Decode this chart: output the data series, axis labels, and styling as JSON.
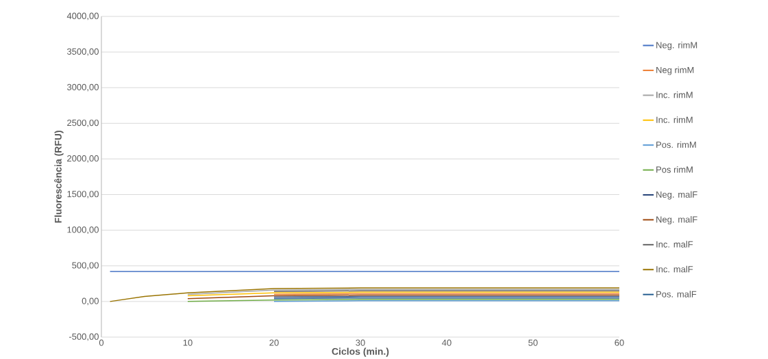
{
  "chart_data": {
    "type": "line",
    "xlabel": "Ciclos (min.)",
    "ylabel": "Fluorescência (RFU)",
    "x": [
      1,
      5,
      10,
      20,
      30,
      40,
      50,
      60
    ],
    "xlim": [
      0,
      60
    ],
    "xticks": [
      0,
      10,
      20,
      30,
      40,
      50,
      60
    ],
    "ylim": [
      -500,
      4000
    ],
    "yticks": [
      {
        "value": -500,
        "label": "-500,00"
      },
      {
        "value": 0,
        "label": "0,00"
      },
      {
        "value": 500,
        "label": "500,00"
      },
      {
        "value": 1000,
        "label": "1000,00"
      },
      {
        "value": 1500,
        "label": "1500,00"
      },
      {
        "value": 2000,
        "label": "2000,00"
      },
      {
        "value": 2500,
        "label": "2500,00"
      },
      {
        "value": 3000,
        "label": "3000,00"
      },
      {
        "value": 3500,
        "label": "3500,00"
      },
      {
        "value": 4000,
        "label": "4000,00"
      }
    ],
    "grid": "y",
    "legend": "right",
    "marker": "none",
    "line_style": "solid",
    "series": [
      {
        "name": "Neg. rimM",
        "color": "#4472c4",
        "values": [
          420,
          420,
          420,
          420,
          420,
          420,
          420,
          420
        ]
      },
      {
        "name": "Neg rimM",
        "color": "#ed7d31",
        "values": [
          null,
          null,
          null,
          100,
          110,
          110,
          110,
          110
        ]
      },
      {
        "name": "Inc. rimM",
        "color": "#a5a5a5",
        "values": [
          null,
          null,
          100,
          160,
          170,
          170,
          170,
          170
        ]
      },
      {
        "name": "Inc. rimM",
        "color": "#ffc000",
        "values": [
          null,
          null,
          80,
          120,
          130,
          130,
          130,
          130
        ]
      },
      {
        "name": "Pos. rimM",
        "color": "#5b9bd5",
        "values": [
          null,
          null,
          null,
          0,
          10,
          10,
          10,
          10
        ]
      },
      {
        "name": "Pos rimM",
        "color": "#70ad47",
        "values": [
          null,
          null,
          0,
          20,
          30,
          30,
          30,
          30
        ]
      },
      {
        "name": "Neg. malF",
        "color": "#264478",
        "values": [
          null,
          null,
          null,
          60,
          70,
          70,
          70,
          70
        ]
      },
      {
        "name": "Neg. malF",
        "color": "#9e480e",
        "values": [
          null,
          null,
          40,
          80,
          90,
          90,
          90,
          90
        ]
      },
      {
        "name": "Inc. malF",
        "color": "#636363",
        "values": [
          null,
          null,
          null,
          140,
          150,
          150,
          150,
          150
        ]
      },
      {
        "name": "Inc. malF",
        "color": "#997300",
        "values": [
          0,
          70,
          120,
          180,
          190,
          190,
          190,
          190
        ]
      },
      {
        "name": "Pos. malF",
        "color": "#255e91",
        "values": [
          null,
          null,
          null,
          40,
          50,
          50,
          50,
          50
        ]
      }
    ]
  }
}
